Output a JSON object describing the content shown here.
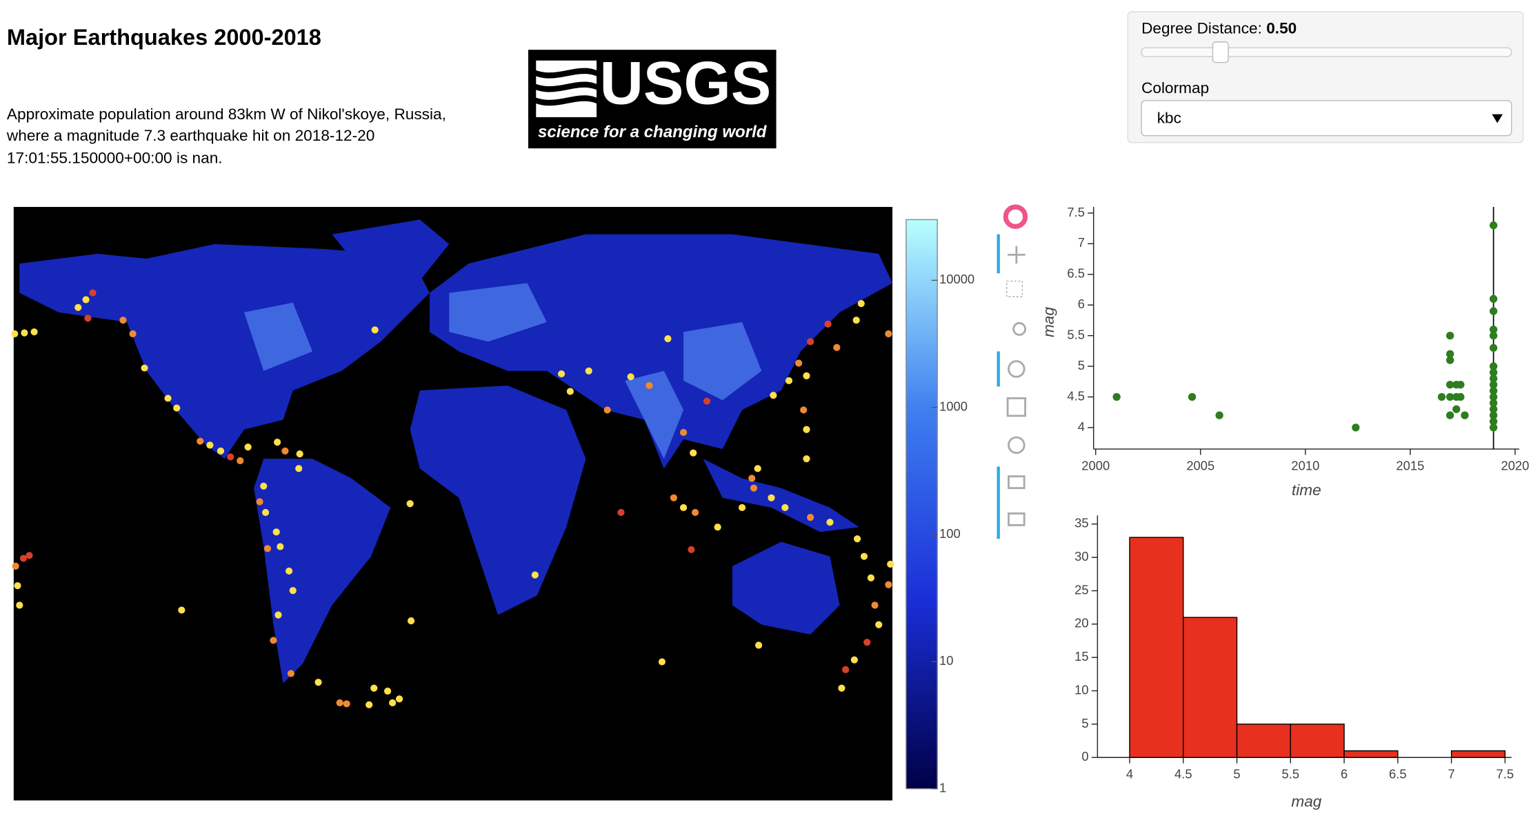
{
  "header": {
    "title": "Major Earthquakes 2000-2018",
    "description": [
      "Approximate population around 83km W of Nikol'skoye, Russia,",
      "where a magnitude 7.3 earthquake hit on 2018-12-20",
      "17:01:55.150000+00:00 is nan."
    ]
  },
  "logo": {
    "text": "USGS",
    "tagline": "science for a changing world"
  },
  "controls": {
    "distance_label": "Degree Distance: ",
    "distance_value": "0.50",
    "colormap_label": "Colormap",
    "colormap_value": "kbc"
  },
  "chart_data": [
    {
      "type": "colorbar",
      "log_scale": true,
      "ylim": [
        1,
        30000
      ],
      "yticks": [
        1,
        10,
        100,
        1000,
        10000
      ],
      "colors": [
        "#000048",
        "#1a2fd8",
        "#3f7ff0",
        "#b8ffff"
      ]
    },
    {
      "type": "scatter",
      "x_label": "time",
      "y_label": "mag",
      "color": "#2e7d1e",
      "x": [
        2001.0,
        2004.6,
        2005.9,
        2012.4,
        2016.5,
        2016.9,
        2016.9,
        2016.9,
        2016.9,
        2016.9,
        2016.9,
        2017.2,
        2017.2,
        2017.2,
        2017.4,
        2017.4,
        2017.6,
        2018.97,
        2018.97,
        2018.97,
        2018.97,
        2018.97,
        2018.97,
        2018.97,
        2018.97,
        2018.97,
        2018.97,
        2018.97,
        2018.97,
        2018.97,
        2018.97,
        2018.97,
        2018.97,
        2018.97
      ],
      "values": [
        4.5,
        4.5,
        4.2,
        4.0,
        4.5,
        5.5,
        5.2,
        5.1,
        4.7,
        4.5,
        4.2,
        4.7,
        4.5,
        4.3,
        4.7,
        4.5,
        4.2,
        7.3,
        6.1,
        5.9,
        5.6,
        5.5,
        5.3,
        5.0,
        4.9,
        4.8,
        4.7,
        4.6,
        4.5,
        4.4,
        4.3,
        4.2,
        4.1,
        4.0
      ],
      "vline": 2018.97,
      "xlim": [
        1999.9,
        2020.2
      ],
      "ylim": [
        3.65,
        7.6
      ],
      "xticks": [
        2000,
        2005,
        2010,
        2015,
        2020
      ],
      "yticks": [
        4,
        4.5,
        5,
        5.5,
        6,
        6.5,
        7,
        7.5
      ]
    },
    {
      "type": "histogram",
      "x_label": "mag",
      "color": "#e8301f",
      "bins": [
        4,
        4.5,
        5,
        5.5,
        6,
        6.5,
        7,
        7.5
      ],
      "values": [
        33,
        21,
        5,
        5,
        1,
        0,
        1
      ],
      "xlim": [
        3.7,
        7.56
      ],
      "ylim": [
        0,
        36.3
      ],
      "xticks": [
        4,
        4.5,
        5,
        5.5,
        6,
        6.5,
        7,
        7.5
      ],
      "yticks": [
        0,
        5,
        10,
        15,
        20,
        25,
        30,
        35
      ]
    }
  ]
}
